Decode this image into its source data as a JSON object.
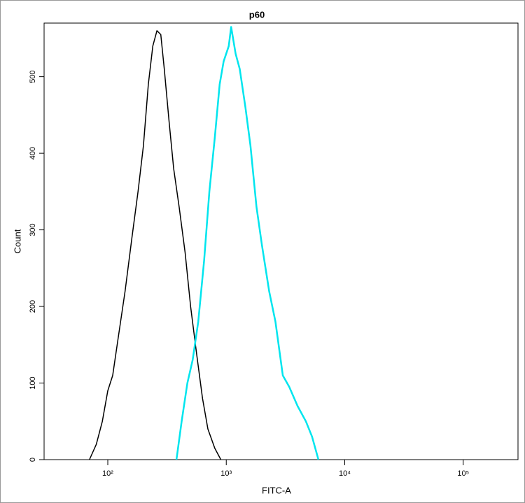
{
  "chart_data": {
    "type": "line",
    "title": "p60",
    "x_label": "FITC-A",
    "y_label": "Count",
    "x_scale": "log",
    "xlim": [
      29,
      290000
    ],
    "xticks": [
      {
        "value": 100,
        "label": "10²"
      },
      {
        "value": 1000,
        "label": "10³"
      },
      {
        "value": 10000,
        "label": "10⁴"
      },
      {
        "value": 100000,
        "label": "10⁵"
      }
    ],
    "ylim": [
      0,
      570
    ],
    "yticks": [
      0,
      100,
      200,
      300,
      400,
      500
    ],
    "series": [
      {
        "color": "#000000",
        "x": [
          70,
          80,
          90,
          100,
          110,
          120,
          140,
          160,
          180,
          200,
          220,
          240,
          260,
          280,
          300,
          330,
          360,
          400,
          450,
          500,
          560,
          630,
          700,
          800,
          900
        ],
        "values": [
          0,
          20,
          50,
          90,
          110,
          150,
          220,
          290,
          350,
          410,
          490,
          540,
          560,
          555,
          510,
          440,
          380,
          330,
          270,
          200,
          140,
          80,
          40,
          15,
          0
        ]
      },
      {
        "color": "#00e5ee",
        "x": [
          380,
          420,
          470,
          520,
          580,
          650,
          720,
          800,
          880,
          950,
          1050,
          1100,
          1200,
          1300,
          1450,
          1600,
          1800,
          2000,
          2300,
          2600,
          3000,
          3400,
          4000,
          4700,
          5300,
          6000
        ],
        "values": [
          0,
          50,
          100,
          130,
          180,
          260,
          350,
          420,
          490,
          520,
          540,
          565,
          530,
          510,
          460,
          410,
          330,
          280,
          220,
          180,
          110,
          95,
          70,
          50,
          30,
          0
        ]
      }
    ]
  }
}
